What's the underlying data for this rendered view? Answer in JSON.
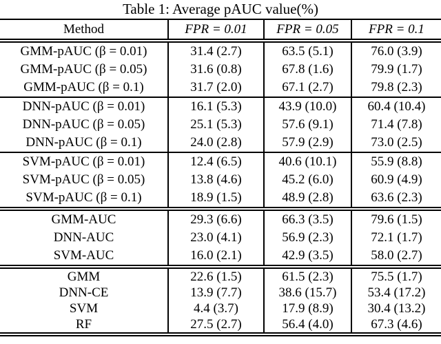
{
  "title": "Table 1: Average pAUC value(%)",
  "table": {
    "headers": [
      "Method",
      "FPR = 0.01",
      "FPR = 0.05",
      "FPR = 0.1"
    ],
    "rows": [
      [
        "GMM-pAUC (β = 0.01)",
        "31.4 (2.7)",
        "63.5 (5.1)",
        "76.0 (3.9)"
      ],
      [
        "GMM-pAUC (β = 0.05)",
        "31.6 (0.8)",
        "67.8 (1.6)",
        "79.9 (1.7)"
      ],
      [
        "GMM-pAUC (β = 0.1)",
        "31.7 (2.0)",
        "67.1 (2.7)",
        "79.8 (2.3)"
      ],
      [
        "DNN-pAUC (β = 0.01)",
        "16.1 (5.3)",
        "43.9 (10.0)",
        "60.4 (10.4)"
      ],
      [
        "DNN-pAUC (β = 0.05)",
        "25.1 (5.3)",
        "57.6 (9.1)",
        "71.4 (7.8)"
      ],
      [
        "DNN-pAUC (β = 0.1)",
        "24.0 (2.8)",
        "57.9 (2.9)",
        "73.0 (2.5)"
      ],
      [
        "SVM-pAUC (β = 0.01)",
        "12.4 (6.5)",
        "40.6 (10.1)",
        "55.9 (8.8)"
      ],
      [
        "SVM-pAUC (β = 0.05)",
        "13.8 (4.6)",
        "45.2 (6.0)",
        "60.9 (4.9)"
      ],
      [
        "SVM-pAUC (β = 0.1)",
        "18.9 (1.5)",
        "48.9 (2.8)",
        "63.6 (2.3)"
      ],
      [
        "GMM-AUC",
        "29.3 (6.6)",
        "66.3 (3.5)",
        "79.6 (1.5)"
      ],
      [
        "DNN-AUC",
        "23.0 (4.1)",
        "56.9 (2.3)",
        "72.1 (1.7)"
      ],
      [
        "SVM-AUC",
        "16.0 (2.1)",
        "42.9 (3.5)",
        "58.0 (2.7)"
      ],
      [
        "GMM",
        "22.6 (1.5)",
        "61.5 (2.3)",
        "75.5 (1.7)"
      ],
      [
        "DNN-CE",
        "13.9 (7.7)",
        "38.6 (15.7)",
        "53.4 (17.2)"
      ],
      [
        "SVM",
        "4.4 (3.7)",
        "17.9 (8.9)",
        "30.4 (13.2)"
      ],
      [
        "RF",
        "27.5 (2.7)",
        "56.4 (4.0)",
        "67.3 (4.6)"
      ]
    ]
  }
}
